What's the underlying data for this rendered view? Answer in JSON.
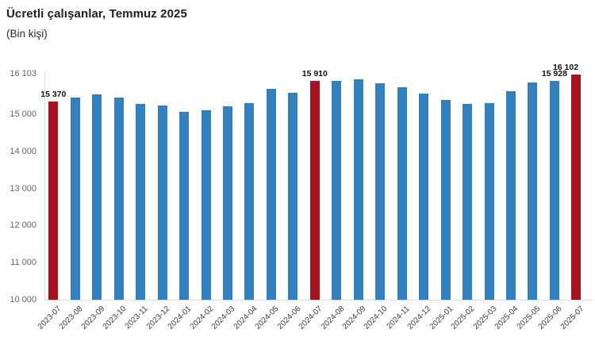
{
  "header": {
    "title": "Ücretli çalışanlar, Temmuz 2025",
    "subtitle": "(Bin kişi)"
  },
  "chart_data": {
    "type": "bar",
    "title": "Ücretli çalışanlar, Temmuz 2025",
    "subtitle": "(Bin kişi)",
    "ylabel": "Bin kişi",
    "xlabel": "",
    "categories": [
      "2023-07",
      "2023-08",
      "2023-09",
      "2023-10",
      "2023-11",
      "2023-12",
      "2024-01",
      "2024-02",
      "2024-03",
      "2024-04",
      "2024-05",
      "2024-06",
      "2024-07",
      "2024-08",
      "2024-09",
      "2024-10",
      "2024-11",
      "2024-12",
      "2025-01",
      "2025-02",
      "2025-03",
      "2025-04",
      "2025-05",
      "2025-06",
      "2025-07"
    ],
    "values": [
      15370,
      15480,
      15550,
      15460,
      15290,
      15250,
      15090,
      15130,
      15240,
      15310,
      15700,
      15600,
      15910,
      15920,
      15970,
      15850,
      15740,
      15580,
      15410,
      15290,
      15330,
      15650,
      15880,
      15928,
      16102
    ],
    "highlight_indices": [
      0,
      12,
      24
    ],
    "value_labels": [
      {
        "index": 0,
        "text": "15 370"
      },
      {
        "index": 12,
        "text": "15 910"
      },
      {
        "index": 23,
        "text": "15 928"
      },
      {
        "index": 24,
        "text": "16 102"
      }
    ],
    "y_ticks": [
      {
        "value": 16103,
        "label": "16 103"
      },
      {
        "value": 15000,
        "label": "15 000"
      },
      {
        "value": 14000,
        "label": "14 000"
      },
      {
        "value": 13000,
        "label": "13 000"
      },
      {
        "value": 12000,
        "label": "12 000"
      },
      {
        "value": 11000,
        "label": "11 000"
      },
      {
        "value": 10000,
        "label": "10 000"
      }
    ],
    "ylim": [
      10000,
      16103
    ],
    "grid": false,
    "legend": null,
    "colors": {
      "bar_default": "#3380BF",
      "bar_highlight": "#A6131E",
      "axis_line": "#dcdcdc",
      "tick_text": "#666666",
      "xtick_text": "#3d3d3d",
      "value_label_text": "#111111"
    }
  }
}
